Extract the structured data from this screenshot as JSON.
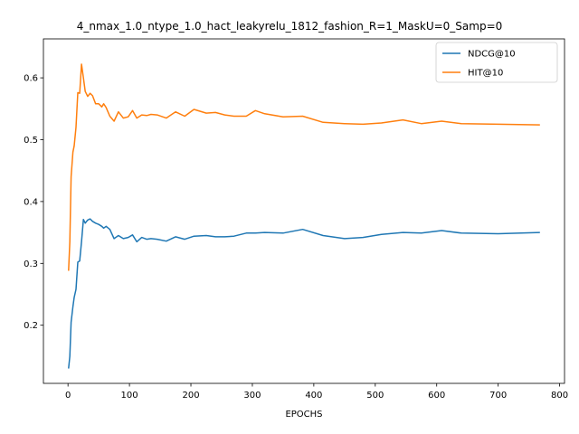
{
  "chart_data": {
    "type": "line",
    "title": "4_nmax_1.0_ntype_1.0_hact_leakyrelu_1812_fashion_R=1_MaskU=0_Samp=0",
    "xlabel": "EPOCHS",
    "ylabel": "",
    "xlim": [
      -40,
      808
    ],
    "ylim": [
      0.106,
      0.663
    ],
    "xticks": [
      0,
      100,
      200,
      300,
      400,
      500,
      600,
      700,
      800
    ],
    "yticks": [
      0.2,
      0.3,
      0.4,
      0.5,
      0.6
    ],
    "ytick_labels": [
      "0.2",
      "0.3",
      "0.4",
      "0.5",
      "0.6"
    ],
    "grid": false,
    "legend_position": "top-right",
    "series": [
      {
        "name": "NDCG@10",
        "color": "#1f77b4",
        "x": [
          1,
          3,
          5,
          8,
          10,
          13,
          16,
          19,
          22,
          25,
          28,
          32,
          36,
          40,
          45,
          50,
          55,
          58,
          62,
          68,
          75,
          82,
          90,
          98,
          105,
          112,
          120,
          128,
          135,
          145,
          160,
          175,
          190,
          205,
          225,
          240,
          255,
          270,
          290,
          305,
          320,
          350,
          382,
          415,
          450,
          480,
          510,
          545,
          575,
          608,
          640,
          700,
          768
        ],
        "y": [
          0.13,
          0.15,
          0.205,
          0.23,
          0.245,
          0.258,
          0.302,
          0.304,
          0.335,
          0.371,
          0.365,
          0.37,
          0.372,
          0.368,
          0.365,
          0.363,
          0.36,
          0.357,
          0.36,
          0.355,
          0.34,
          0.345,
          0.34,
          0.342,
          0.346,
          0.335,
          0.342,
          0.339,
          0.34,
          0.339,
          0.336,
          0.343,
          0.339,
          0.344,
          0.345,
          0.343,
          0.343,
          0.344,
          0.349,
          0.349,
          0.35,
          0.349,
          0.355,
          0.345,
          0.34,
          0.342,
          0.347,
          0.35,
          0.349,
          0.353,
          0.349,
          0.348,
          0.35
        ]
      },
      {
        "name": "HIT@10",
        "color": "#ff7f0e",
        "x": [
          1,
          3,
          5,
          8,
          10,
          13,
          16,
          19,
          22,
          25,
          28,
          32,
          36,
          40,
          45,
          50,
          55,
          58,
          62,
          68,
          75,
          82,
          90,
          98,
          105,
          112,
          120,
          128,
          135,
          145,
          160,
          175,
          190,
          205,
          225,
          240,
          255,
          270,
          290,
          305,
          320,
          350,
          382,
          415,
          450,
          480,
          510,
          545,
          575,
          608,
          640,
          700,
          768
        ],
        "y": [
          0.288,
          0.335,
          0.44,
          0.48,
          0.49,
          0.52,
          0.576,
          0.575,
          0.622,
          0.6,
          0.578,
          0.57,
          0.575,
          0.571,
          0.558,
          0.558,
          0.553,
          0.558,
          0.552,
          0.538,
          0.53,
          0.545,
          0.535,
          0.537,
          0.547,
          0.535,
          0.54,
          0.539,
          0.541,
          0.54,
          0.535,
          0.545,
          0.538,
          0.549,
          0.543,
          0.544,
          0.54,
          0.538,
          0.538,
          0.547,
          0.542,
          0.537,
          0.538,
          0.528,
          0.526,
          0.525,
          0.527,
          0.532,
          0.526,
          0.53,
          0.526,
          0.525,
          0.524
        ]
      }
    ]
  }
}
